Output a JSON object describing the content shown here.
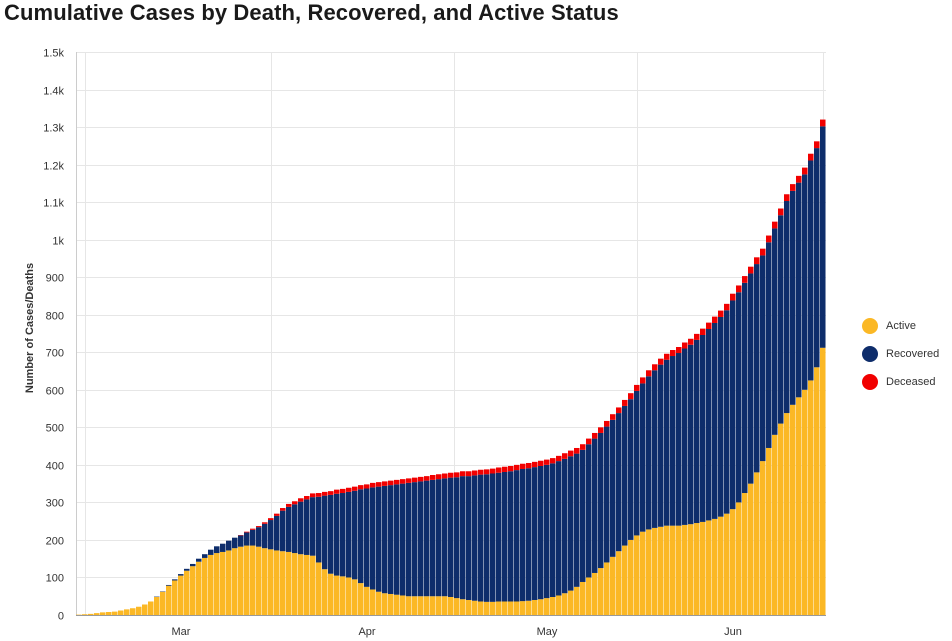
{
  "title": "Cumulative Cases by Death, Recovered, and Active Status",
  "legend": {
    "items": [
      {
        "label": "Active",
        "color": "#fbb825"
      },
      {
        "label": "Recovered",
        "color": "#0e2d6b"
      },
      {
        "label": "Deceased",
        "color": "#f10000"
      }
    ]
  },
  "chart_data": {
    "type": "bar",
    "stacked": true,
    "title": "Cumulative Cases by Death, Recovered, and Active Status",
    "xlabel": "",
    "ylabel": "Number of Cases/Deaths",
    "ylim": [
      0,
      1500
    ],
    "yticks": [
      {
        "value": 0,
        "label": "0"
      },
      {
        "value": 100,
        "label": "100"
      },
      {
        "value": 200,
        "label": "200"
      },
      {
        "value": 300,
        "label": "300"
      },
      {
        "value": 400,
        "label": "400"
      },
      {
        "value": 500,
        "label": "500"
      },
      {
        "value": 600,
        "label": "600"
      },
      {
        "value": 700,
        "label": "700"
      },
      {
        "value": 800,
        "label": "800"
      },
      {
        "value": 900,
        "label": "900"
      },
      {
        "value": 1000,
        "label": "1k"
      },
      {
        "value": 1100,
        "label": "1.1k"
      },
      {
        "value": 1200,
        "label": "1.2k"
      },
      {
        "value": 1300,
        "label": "1.3k"
      },
      {
        "value": 1400,
        "label": "1.4k"
      },
      {
        "value": 1500,
        "label": "1.5k"
      }
    ],
    "xticks": [
      {
        "label": "Mar",
        "day_index": 17
      },
      {
        "label": "Apr",
        "day_index": 48
      },
      {
        "label": "May",
        "day_index": 78
      },
      {
        "label": "Jun",
        "day_index": 109
      }
    ],
    "grid": true,
    "legend_position": "right",
    "series": [
      {
        "name": "Active",
        "color": "#fbb825",
        "values": [
          1,
          2,
          3,
          5,
          7,
          8,
          9,
          12,
          15,
          18,
          22,
          28,
          36,
          48,
          62,
          78,
          92,
          105,
          118,
          130,
          142,
          152,
          160,
          165,
          168,
          172,
          178,
          182,
          185,
          185,
          182,
          178,
          175,
          172,
          170,
          168,
          165,
          162,
          160,
          158,
          140,
          122,
          110,
          105,
          103,
          100,
          95,
          85,
          75,
          68,
          62,
          58,
          56,
          54,
          52,
          50,
          50,
          50,
          50,
          50,
          50,
          50,
          48,
          45,
          42,
          40,
          38,
          36,
          35,
          35,
          36,
          36,
          36,
          36,
          37,
          38,
          40,
          42,
          45,
          48,
          52,
          58,
          65,
          75,
          88,
          100,
          112,
          125,
          140,
          155,
          170,
          185,
          200,
          212,
          222,
          228,
          232,
          235,
          238,
          238,
          238,
          240,
          242,
          245,
          248,
          252,
          256,
          262,
          270,
          282,
          300,
          325,
          350,
          380,
          410,
          445,
          480,
          510,
          538,
          560,
          580,
          600,
          625,
          660,
          712
        ]
      },
      {
        "name": "Recovered",
        "color": "#0e2d6b",
        "values": [
          0,
          0,
          0,
          0,
          0,
          0,
          0,
          0,
          0,
          0,
          0,
          0,
          0,
          1,
          1,
          2,
          3,
          4,
          5,
          6,
          8,
          10,
          14,
          18,
          22,
          26,
          28,
          30,
          35,
          42,
          52,
          65,
          78,
          92,
          108,
          120,
          130,
          140,
          148,
          156,
          175,
          196,
          210,
          218,
          222,
          228,
          236,
          250,
          262,
          272,
          280,
          286,
          290,
          294,
          298,
          302,
          304,
          306,
          308,
          310,
          312,
          314,
          318,
          322,
          328,
          330,
          334,
          338,
          340,
          342,
          343,
          345,
          347,
          350,
          352,
          353,
          354,
          355,
          355,
          356,
          358,
          358,
          358,
          355,
          352,
          355,
          358,
          360,
          362,
          365,
          368,
          372,
          375,
          385,
          395,
          408,
          420,
          432,
          442,
          452,
          460,
          470,
          478,
          488,
          498,
          510,
          522,
          532,
          542,
          556,
          560,
          560,
          560,
          555,
          548,
          548,
          550,
          555,
          565,
          570,
          572,
          574,
          586,
          584,
          590
        ]
      },
      {
        "name": "Deceased",
        "color": "#f10000",
        "values": [
          0,
          0,
          0,
          0,
          0,
          0,
          0,
          0,
          0,
          0,
          0,
          0,
          0,
          0,
          0,
          0,
          0,
          0,
          0,
          0,
          0,
          0,
          0,
          0,
          0,
          0,
          0,
          1,
          2,
          3,
          3,
          4,
          5,
          6,
          7,
          8,
          8,
          9,
          9,
          10,
          10,
          10,
          10,
          11,
          11,
          11,
          11,
          11,
          11,
          12,
          12,
          12,
          12,
          12,
          12,
          12,
          12,
          12,
          12,
          13,
          13,
          13,
          13,
          13,
          13,
          13,
          13,
          13,
          13,
          13,
          14,
          14,
          14,
          14,
          14,
          14,
          14,
          14,
          14,
          14,
          14,
          15,
          15,
          15,
          15,
          15,
          15,
          15,
          15,
          15,
          15,
          16,
          16,
          16,
          16,
          16,
          16,
          16,
          16,
          16,
          16,
          16,
          16,
          16,
          17,
          17,
          17,
          17,
          17,
          18,
          18,
          18,
          18,
          18,
          18,
          18,
          18,
          18,
          18,
          18,
          18,
          18,
          18,
          18,
          18
        ]
      }
    ]
  }
}
